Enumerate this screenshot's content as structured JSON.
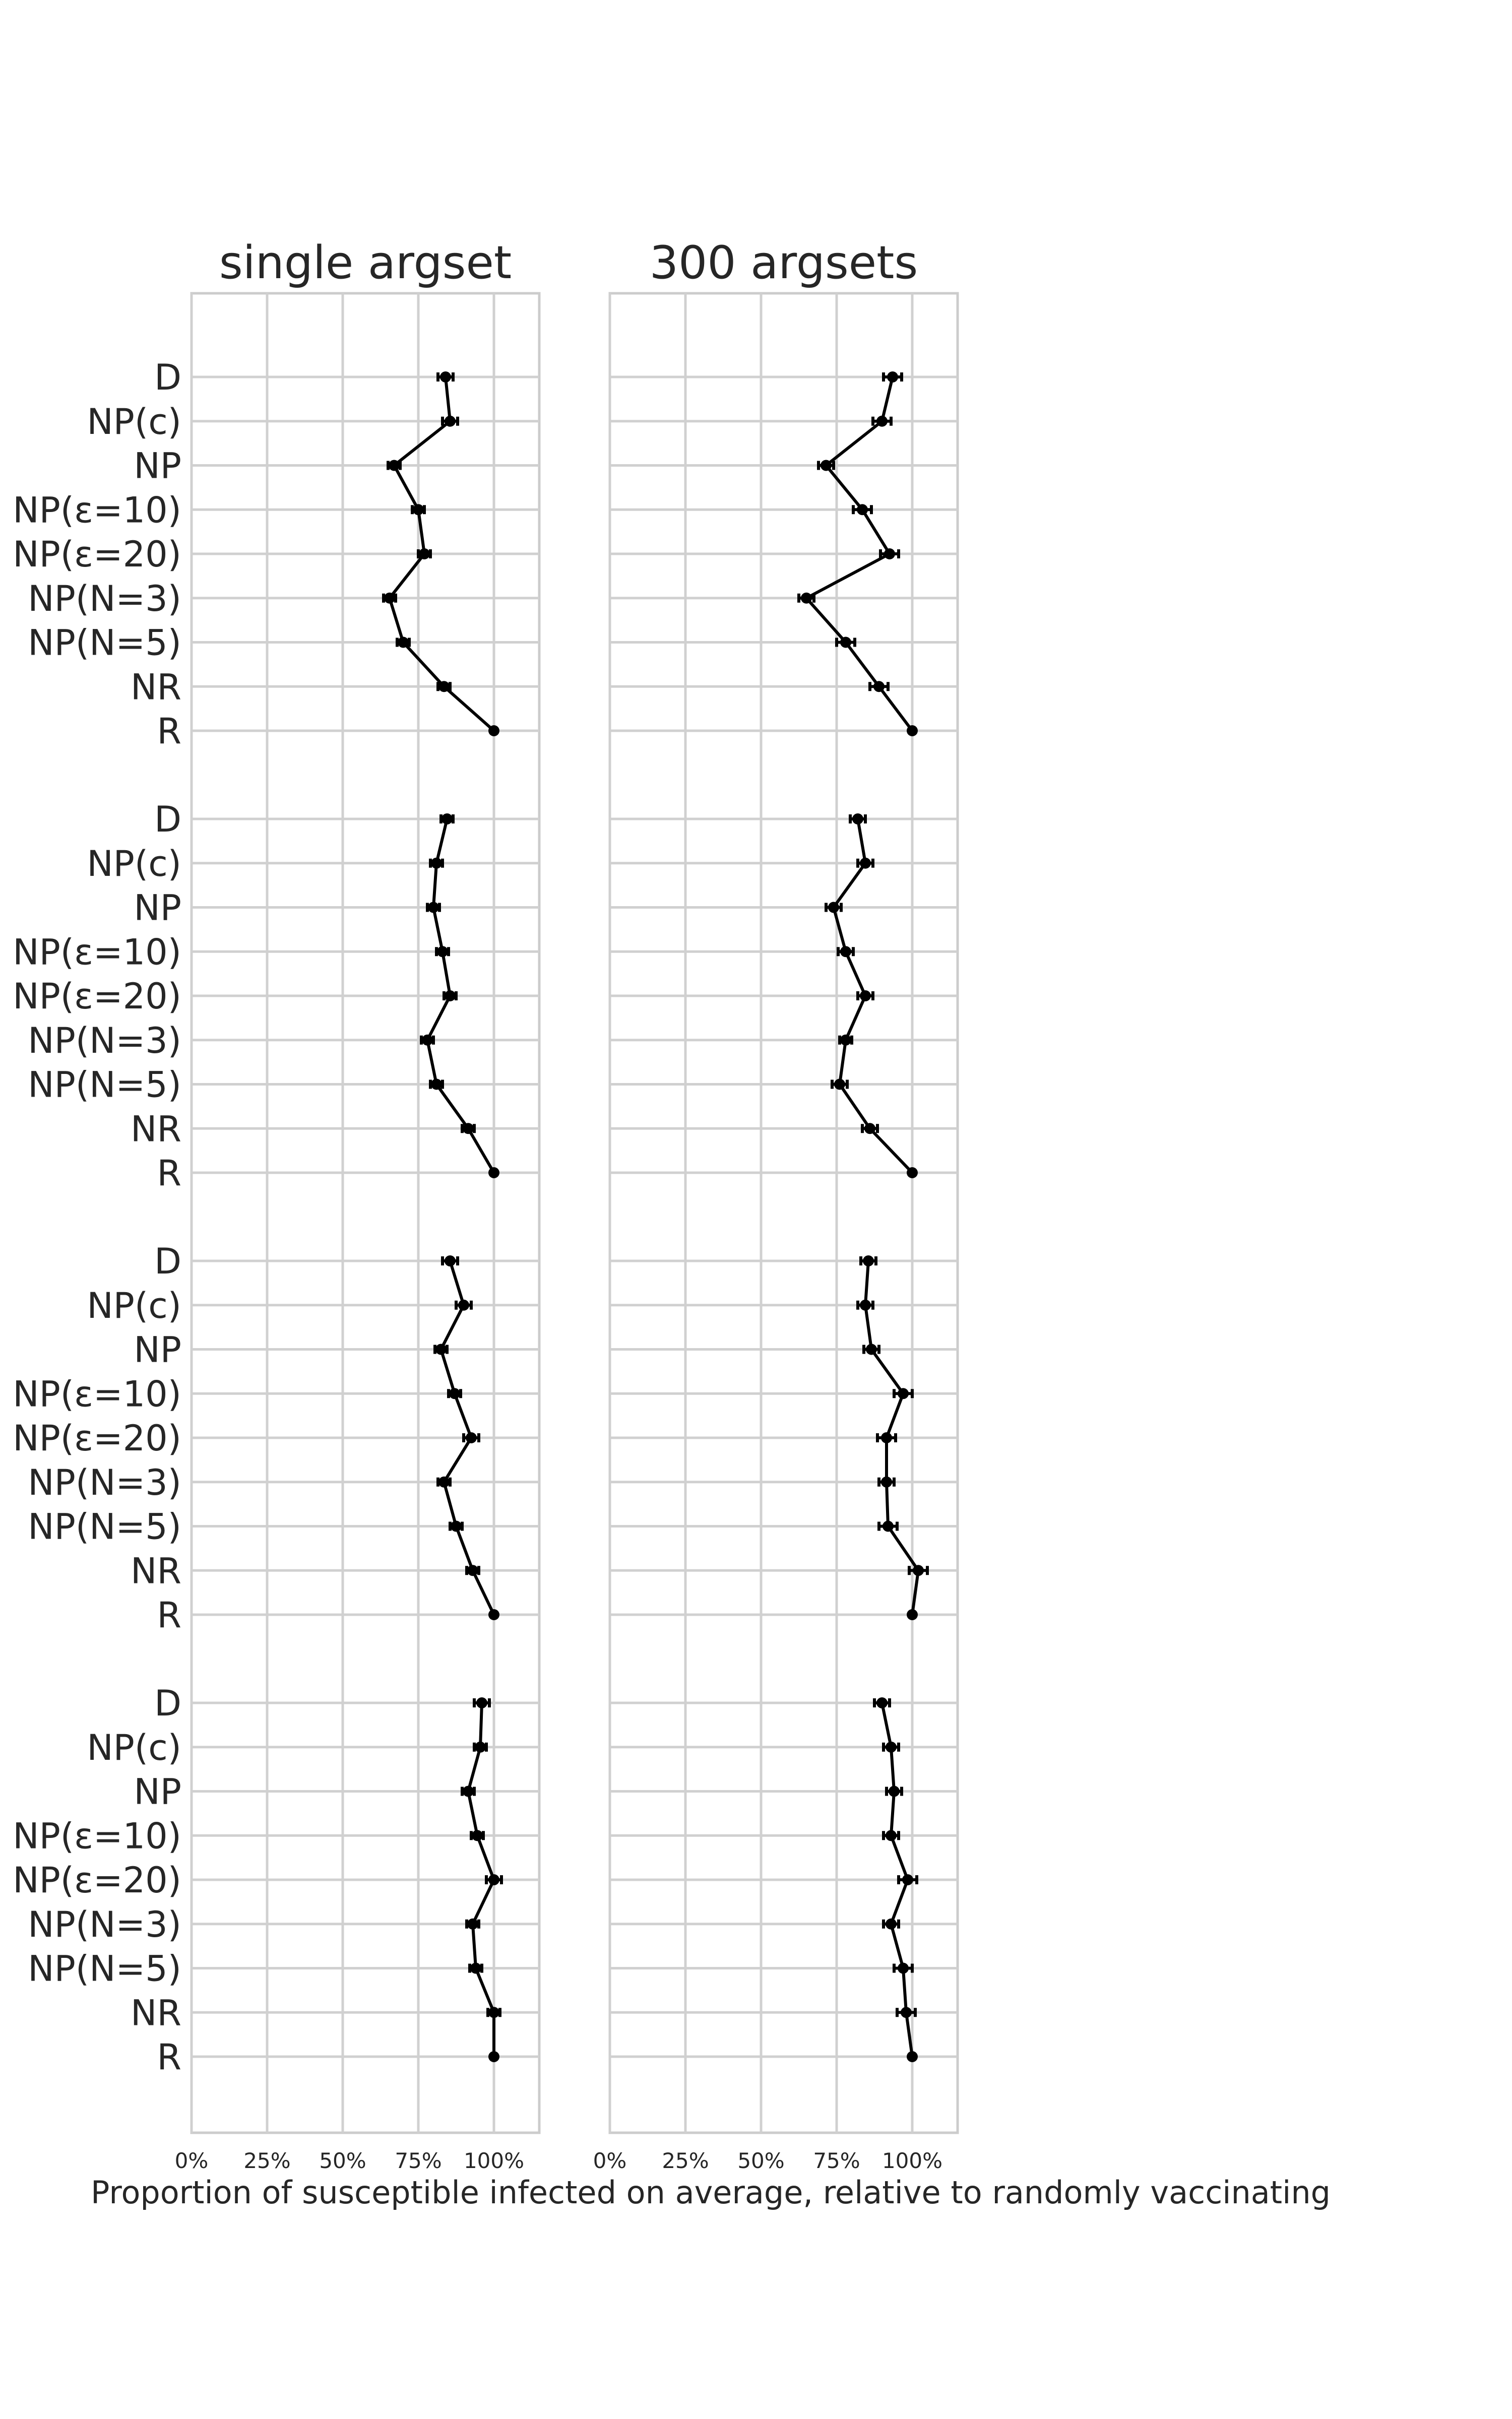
{
  "chart_data": {
    "type": "line",
    "x_axis": {
      "label": "Proportion of susceptible infected on average, relative to randomly vaccinating",
      "ticks": [
        0,
        25,
        50,
        75,
        100
      ],
      "tick_labels": [
        "0%",
        "25%",
        "50%",
        "75%",
        "100%"
      ],
      "xlim": [
        0,
        115
      ]
    },
    "categories": [
      "D",
      "NP(c)",
      "NP",
      "NP(ε=10)",
      "NP(ε=20)",
      "NP(N=3)",
      "NP(N=5)",
      "NR",
      "R"
    ],
    "grid": true,
    "legend": "none",
    "panels": [
      {
        "title": "single argset",
        "groups": [
          {
            "values": [
              84,
              85.5,
              67,
              75,
              77,
              65.5,
              70,
              83.5,
              100
            ],
            "errors": [
              2.5,
              2.5,
              2,
              2,
              2,
              2,
              2,
              2,
              0
            ]
          },
          {
            "values": [
              84.5,
              81,
              80,
              83,
              85.5,
              78,
              81,
              91.5,
              100
            ],
            "errors": [
              2,
              2,
              2,
              2,
              2,
              2,
              2,
              2,
              0
            ]
          },
          {
            "values": [
              85.5,
              90,
              82.5,
              87,
              92.5,
              83.5,
              87.5,
              93,
              100
            ],
            "errors": [
              2.5,
              2.5,
              2,
              2,
              2.5,
              2,
              2,
              2,
              0
            ]
          },
          {
            "values": [
              96,
              95.5,
              91.5,
              94.5,
              100,
              93,
              94,
              100,
              100
            ],
            "errors": [
              2.5,
              2,
              2,
              2,
              2.5,
              2,
              2,
              2,
              0
            ]
          }
        ]
      },
      {
        "title": "300 argsets",
        "groups": [
          {
            "values": [
              93.5,
              90,
              71.5,
              83.5,
              92.5,
              65,
              78,
              89,
              100
            ],
            "errors": [
              3,
              3,
              2.5,
              3,
              3,
              2.5,
              3,
              3,
              0
            ]
          },
          {
            "values": [
              82,
              84.5,
              74,
              78,
              84.5,
              78,
              76,
              86,
              100
            ],
            "errors": [
              2.5,
              2.5,
              2.5,
              2.5,
              2.5,
              2,
              2.5,
              2.5,
              0
            ]
          },
          {
            "values": [
              85.5,
              84.5,
              86.5,
              97,
              91.5,
              91.5,
              92,
              102,
              100
            ],
            "errors": [
              2.5,
              2.5,
              2.5,
              3,
              3,
              2.5,
              3,
              3,
              0
            ]
          },
          {
            "values": [
              90,
              93,
              94,
              93,
              98.5,
              93,
              97,
              98,
              100
            ],
            "errors": [
              2.5,
              2.5,
              2.5,
              2.5,
              3,
              2.5,
              3,
              3,
              0
            ]
          }
        ]
      }
    ]
  }
}
